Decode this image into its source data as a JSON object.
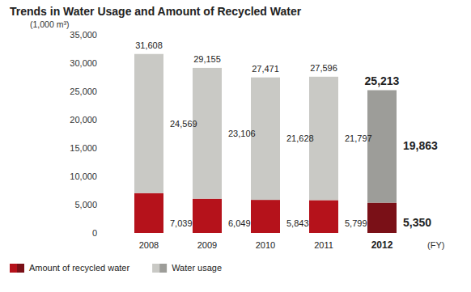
{
  "chart_data": {
    "type": "bar",
    "stacked": true,
    "title": "Trends in Water Usage and Amount of Recycled Water",
    "y_label": "(1,000 m³)",
    "x_label": "(FY)",
    "categories": [
      "2008",
      "2009",
      "2010",
      "2011",
      "2012"
    ],
    "series": [
      {
        "name": "Amount of recycled water",
        "colors": [
          "#b5121b",
          "#b5121b",
          "#b5121b",
          "#b5121b",
          "#7a1017"
        ],
        "values": [
          7039,
          6049,
          5843,
          5799,
          5350
        ],
        "value_labels": [
          "7,039",
          "6,049",
          "5,843",
          "5,799",
          "5,350"
        ]
      },
      {
        "name": "Water usage",
        "colors": [
          "#c9c9c5",
          "#c9c9c5",
          "#c9c9c5",
          "#c9c9c5",
          "#9d9d99"
        ],
        "values": [
          24569,
          23106,
          21628,
          21797,
          19863
        ],
        "value_labels": [
          "24,569",
          "23,106",
          "21,628",
          "21,797",
          "19,863"
        ]
      }
    ],
    "totals": [
      31608,
      29155,
      27471,
      27596,
      25213
    ],
    "total_labels": [
      "31,608",
      "29,155",
      "27,471",
      "27,596",
      "25,213"
    ],
    "data_labels": true,
    "ylim": [
      0,
      35000
    ],
    "yticks": [
      0,
      {
        "value": 5000,
        "label": "5,000"
      },
      {
        "value": 10000,
        "label": "10,000"
      },
      {
        "value": 15000,
        "label": "15,000"
      },
      {
        "value": 20000,
        "label": "20,000"
      },
      {
        "value": 25000,
        "label": "25,000"
      },
      {
        "value": 30000,
        "label": "30,000"
      },
      {
        "value": 35000,
        "label": "35,000"
      }
    ],
    "grid": false,
    "legend": "bottom-left"
  }
}
